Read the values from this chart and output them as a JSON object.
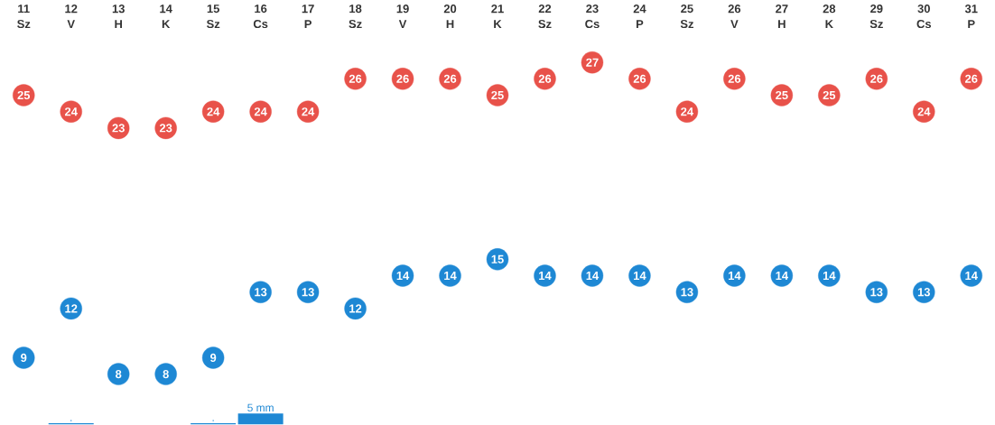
{
  "chart_data": [
    {
      "type": "scatter",
      "categories": [
        "11 Sz",
        "12 V",
        "13 H",
        "14 K",
        "15 Sz",
        "16 Cs",
        "17 P",
        "18 Sz",
        "19 V",
        "20 H",
        "21 K",
        "22 Sz",
        "23 Cs",
        "24 P",
        "25 Sz",
        "26 V",
        "27 H",
        "28 K",
        "29 Sz",
        "30 Cs",
        "31 P"
      ],
      "series": [
        {
          "color": "#e8524a",
          "values": [
            25,
            24,
            23,
            23,
            24,
            24,
            24,
            26,
            26,
            26,
            25,
            26,
            27,
            26,
            24,
            26,
            25,
            25,
            26,
            24,
            26
          ]
        },
        {
          "color": "#1e88d4",
          "values": [
            9,
            12,
            8,
            8,
            9,
            13,
            13,
            12,
            14,
            14,
            15,
            14,
            14,
            14,
            13,
            14,
            14,
            14,
            13,
            13,
            14
          ]
        }
      ],
      "marker": "circle",
      "data_labels": true
    },
    {
      "type": "bar",
      "categories": [
        null,
        null,
        null,
        null,
        null,
        null,
        null,
        null,
        null,
        null,
        null,
        null,
        null,
        null,
        null,
        null,
        null,
        null,
        null,
        null,
        null
      ],
      "values": [
        null,
        0.5,
        null,
        null,
        0.5,
        5,
        null,
        null,
        null,
        null,
        null,
        null,
        null,
        null,
        null,
        null,
        null,
        null,
        null,
        null,
        null
      ],
      "value_labels": [
        null,
        ".",
        null,
        null,
        ".",
        "5 mm",
        null,
        null,
        null,
        null,
        null,
        null,
        null,
        null,
        null,
        null,
        null,
        null,
        null,
        null,
        null
      ],
      "color": "#1e88d4"
    }
  ]
}
